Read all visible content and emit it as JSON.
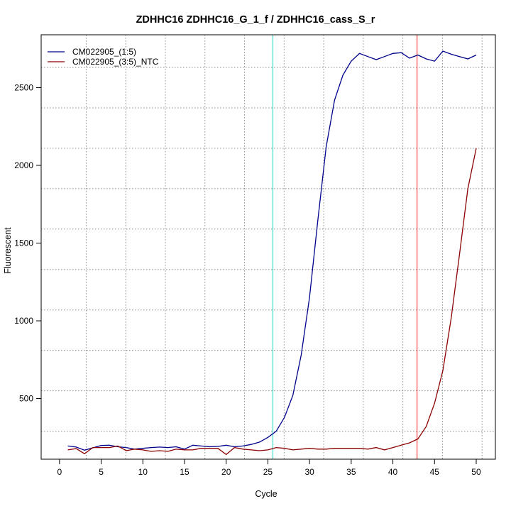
{
  "chart_data": {
    "type": "line",
    "title": "ZDHHC16  ZDHHC16_G_1_f / ZDHHC16_cass_S_r",
    "xlabel": "Cycle",
    "ylabel": "Fluorescent",
    "xlim": [
      -2.2,
      52.3
    ],
    "ylim": [
      110,
      2840
    ],
    "x_ticks": [
      0,
      5,
      10,
      15,
      20,
      25,
      30,
      35,
      40,
      45,
      50
    ],
    "y_ticks": [
      500,
      1000,
      1500,
      2000,
      2500
    ],
    "grid": true,
    "legend_position": "top-left",
    "threshold_lines": [
      {
        "x": 25.6,
        "color": "#40e0d0"
      },
      {
        "x": 42.9,
        "color": "#ff4040"
      }
    ],
    "x": [
      1,
      2,
      3,
      4,
      5,
      6,
      7,
      8,
      9,
      10,
      11,
      12,
      13,
      14,
      15,
      16,
      17,
      18,
      19,
      20,
      21,
      22,
      23,
      24,
      25,
      26,
      27,
      28,
      29,
      30,
      31,
      32,
      33,
      34,
      35,
      36,
      37,
      38,
      39,
      40,
      41,
      42,
      43,
      44,
      45,
      46,
      47,
      48,
      49,
      50
    ],
    "series": [
      {
        "name": "CM022905_(1:5)",
        "color": "#00008b",
        "values": [
          195,
          188,
          168,
          183,
          198,
          200,
          190,
          185,
          175,
          180,
          185,
          188,
          185,
          190,
          175,
          200,
          195,
          190,
          192,
          200,
          190,
          195,
          205,
          220,
          250,
          290,
          380,
          520,
          780,
          1150,
          1650,
          2120,
          2420,
          2580,
          2670,
          2720,
          2700,
          2680,
          2700,
          2720,
          2725,
          2690,
          2710,
          2685,
          2670,
          2735,
          2715,
          2700,
          2685,
          2710
        ]
      },
      {
        "name": "CM022905_(3:5)_NTC",
        "color": "#8b0000",
        "values": [
          170,
          178,
          145,
          185,
          185,
          185,
          195,
          165,
          175,
          170,
          160,
          165,
          160,
          175,
          170,
          170,
          180,
          180,
          180,
          140,
          185,
          175,
          170,
          165,
          170,
          185,
          180,
          170,
          175,
          180,
          175,
          175,
          180,
          180,
          180,
          180,
          175,
          185,
          170,
          185,
          200,
          215,
          240,
          320,
          470,
          680,
          1020,
          1430,
          1850,
          2110
        ]
      }
    ]
  }
}
